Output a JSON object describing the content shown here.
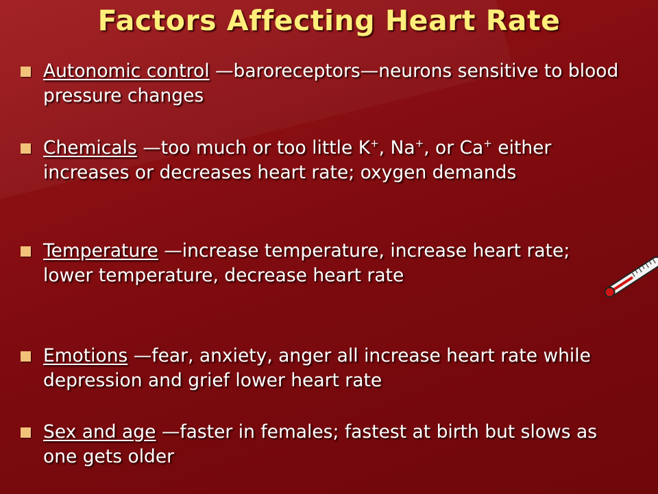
{
  "slide": {
    "title": "Factors Affecting Heart Rate",
    "bullet_icon": "square-bullet",
    "bullet_color": "#f2c27a",
    "title_color": "#ffee7a",
    "background_color": "#7e0a0e",
    "items": [
      {
        "term": "Autonomic control",
        "text": " —baroreceptors—neurons sensitive to blood pressure changes"
      },
      {
        "term": "Chemicals",
        "text_a": " —too much or too little K",
        "sup1": "+",
        "text_b": ", Na",
        "sup2": "+",
        "text_c": ", or Ca",
        "sup3": "+",
        "text_d": " either increases or decreases heart rate; oxygen demands"
      },
      {
        "term": "Temperature",
        "text": " —increase temperature, increase heart rate; lower temperature, decrease heart rate"
      },
      {
        "term": "Emotions",
        "text": " —fear, anxiety, anger all increase heart rate while depression and grief lower heart rate"
      },
      {
        "term": "Sex and age",
        "text": " —faster in females; fastest at birth but slows as one gets older"
      }
    ],
    "image_icon": "thermometer-icon"
  }
}
